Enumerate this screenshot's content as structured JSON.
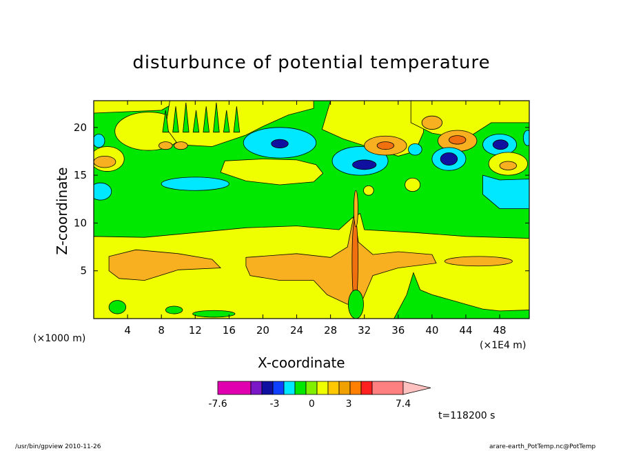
{
  "chart_data": {
    "type": "heatmap",
    "title": "disturbunce of potential temperature",
    "xlabel": "X-coordinate",
    "ylabel": "Z-coordinate",
    "x_unit_left": "(×1000 m)",
    "x_unit_right": "(×1E4 m)",
    "xlim": [
      0,
      51.5
    ],
    "ylim": [
      0,
      22.8
    ],
    "xticks": [
      4,
      8,
      12,
      16,
      20,
      24,
      28,
      32,
      36,
      40,
      44,
      48
    ],
    "yticks": [
      5,
      10,
      15,
      20
    ],
    "time_label": "t=118200 s",
    "colorbar": {
      "labels": [
        "-7.6",
        "-3",
        "0",
        "3",
        "7.4"
      ],
      "label_values": [
        -7.6,
        -3,
        0,
        3,
        7.4
      ],
      "colors": [
        "#e000b0",
        "#7a18c8",
        "#1010a0",
        "#1040ff",
        "#00e8ff",
        "#00e800",
        "#80f000",
        "#f0ff00",
        "#ffc800",
        "#f0a000",
        "#ff8000",
        "#ff2020",
        "#ff8080",
        "#ffc0c0"
      ]
    },
    "palette": {
      "green": "#00e800",
      "yellow": "#f0ff00",
      "orange": "#f8b020",
      "darkorange": "#f07010",
      "cyan": "#00e8ff",
      "blue": "#1040ff",
      "darkblue": "#1010a0",
      "red": "#ff2020"
    }
  },
  "footer": {
    "left": "/usr/bin/gpview   2010-11-26",
    "right": "arare-earth_PotTemp.nc@PotTemp"
  }
}
